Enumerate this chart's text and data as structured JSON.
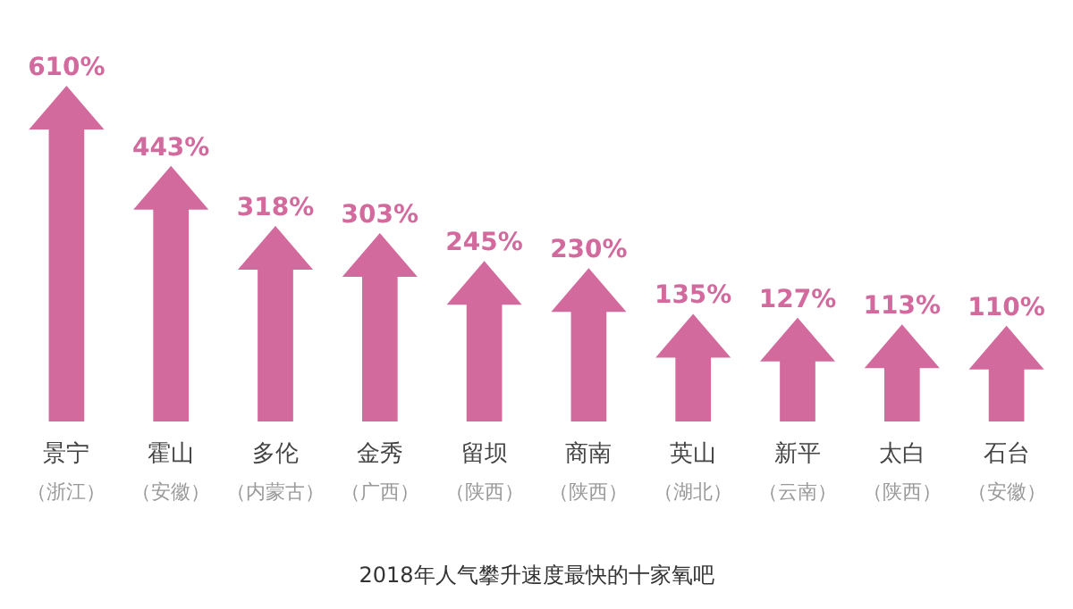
{
  "chart_data": {
    "type": "bar",
    "title": "2018年人气攀升速度最快的十家氧吧",
    "categories": [
      "景宁（浙江）",
      "霍山（安徽）",
      "多伦（内蒙古）",
      "金秀（广西）",
      "留坝（陕西）",
      "商南（陕西）",
      "英山（湖北）",
      "新平（云南）",
      "太白（陕西）",
      "石台（安徽）"
    ],
    "values": [
      610,
      443,
      318,
      303,
      245,
      230,
      135,
      127,
      113,
      110
    ],
    "value_labels": [
      "610%",
      "443%",
      "318%",
      "303%",
      "245%",
      "230%",
      "135%",
      "127%",
      "113%",
      "110%"
    ],
    "color": "#d26a9e"
  }
}
